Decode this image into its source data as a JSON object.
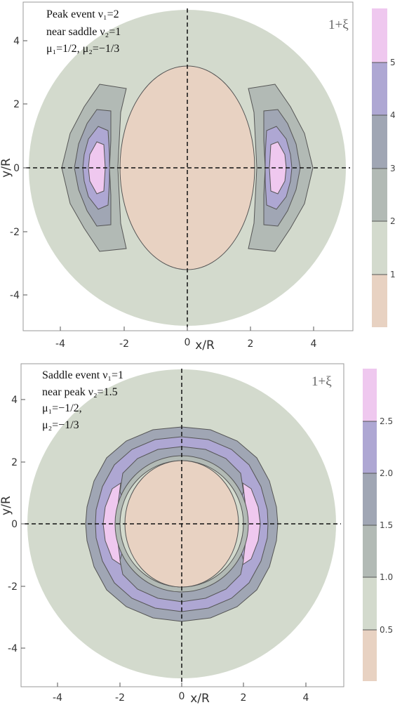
{
  "chart_data": [
    {
      "type": "contour",
      "panel": "top",
      "xlabel": "x/R",
      "ylabel": "y/R",
      "xlim": [
        -5.2,
        5.2
      ],
      "ylim": [
        -5.3,
        5.3
      ],
      "x_ticks": [
        "-4",
        "-2",
        "0",
        "2",
        "4"
      ],
      "y_ticks": [
        "4",
        "2",
        "0",
        "-2",
        "-4"
      ],
      "annotation": [
        "Peak event ν₁=2",
        "near saddle ν₂=1",
        "μ₁=1/2, μ₂=−1/3"
      ],
      "legend_title": "1+ξ",
      "colorbar_ticks": [
        "5",
        "4",
        "3",
        "2",
        "1"
      ],
      "colorbar_levels": [
        1,
        2,
        3,
        4,
        5
      ],
      "colorbar_colors": [
        "#e8d2c2",
        "#d3dacd",
        "#b2bab5",
        "#a0a6b4",
        "#aea7d3",
        "#efc8ef"
      ],
      "domain_radius": 5,
      "central_region_radii": {
        "x": 2.1,
        "y": 3.2
      },
      "side_lobes_x": [
        -2.8,
        2.8
      ]
    },
    {
      "type": "contour",
      "panel": "bottom",
      "xlabel": "x/R",
      "ylabel": "y/R",
      "xlim": [
        -5.2,
        5.2
      ],
      "ylim": [
        -5.3,
        5.3
      ],
      "x_ticks": [
        "-4",
        "-2",
        "0",
        "2",
        "4"
      ],
      "y_ticks": [
        "4",
        "2",
        "0",
        "-2",
        "-4"
      ],
      "annotation": [
        "Saddle event ν₁=1",
        "near peak ν₂=1.5",
        "μ₁=−1/2,",
        "μ₂=−1/3"
      ],
      "legend_title": "1+ξ",
      "colorbar_ticks": [
        "2.5",
        "2.0",
        "1.5",
        "1.0",
        "0.5"
      ],
      "colorbar_levels": [
        0.5,
        1.0,
        1.5,
        2.0,
        2.5
      ],
      "colorbar_colors": [
        "#e8d2c2",
        "#d3dacd",
        "#b2bab5",
        "#a0a6b4",
        "#aea7d3",
        "#efc8ef"
      ],
      "domain_radius": 5,
      "ring_radii": [
        2.1,
        2.4,
        2.7,
        3.0
      ]
    }
  ]
}
